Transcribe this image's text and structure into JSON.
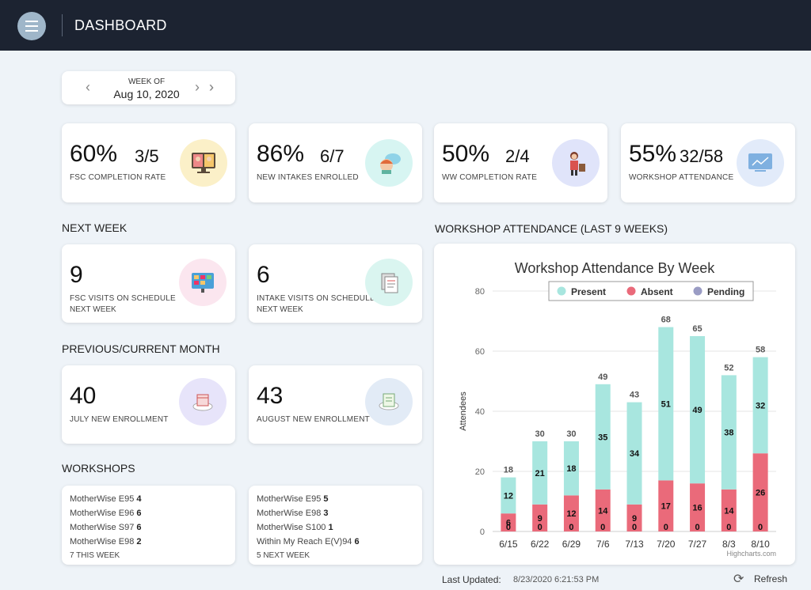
{
  "header": {
    "title": "DASHBOARD"
  },
  "week": {
    "label": "WEEK OF",
    "date": "Aug 10, 2020"
  },
  "stats": [
    {
      "big": "60%",
      "frac": "3/5",
      "label": "FSC COMPLETION RATE",
      "icon": "family-computer-icon",
      "color": "#fbf0c8"
    },
    {
      "big": "86%",
      "frac": "6/7",
      "label": "NEW INTAKES ENROLLED",
      "icon": "chat-person-icon",
      "color": "#d7f5f2"
    },
    {
      "big": "50%",
      "frac": "2/4",
      "label": "WW COMPLETION RATE",
      "icon": "teacher-icon",
      "color": "#e0e4fa"
    },
    {
      "big": "55%",
      "frac": "32/58",
      "label": "WORKSHOP ATTENDANCE",
      "icon": "presentation-screen-icon",
      "color": "#e2ebfa"
    }
  ],
  "sections": {
    "next_week": "NEXT WEEK",
    "month": "PREVIOUS/CURRENT MONTH",
    "workshops": "WORKSHOPS",
    "attendance": "WORKSHOP ATTENDANCE (LAST 9 WEEKS)"
  },
  "next_week": [
    {
      "big": "9",
      "label": "FSC VISITS ON SCHEDULE",
      "label2": "NEXT WEEK",
      "icon": "calendar-board-icon",
      "color": "#fbe6ef"
    },
    {
      "big": "6",
      "label": "INTAKE VISITS ON SCHEDULE",
      "label2": "NEXT WEEK",
      "icon": "documents-icon",
      "color": "#daf5f0"
    }
  ],
  "month": [
    {
      "big": "40",
      "label": "JULY NEW ENROLLMENT",
      "icon": "calendar-cloud-icon",
      "color": "#e7e4fa"
    },
    {
      "big": "43",
      "label": "AUGUST NEW ENROLLMENT",
      "icon": "document-cloud-icon",
      "color": "#e2ebf6"
    }
  ],
  "workshops": {
    "this_week": {
      "items": [
        {
          "name": "MotherWise E95",
          "count": "4"
        },
        {
          "name": "MotherWise E96",
          "count": "6"
        },
        {
          "name": "MotherWise S97",
          "count": "6"
        },
        {
          "name": "MotherWise E98",
          "count": "2"
        }
      ],
      "footer": "7 THIS WEEK"
    },
    "next_week": {
      "items": [
        {
          "name": "MotherWise E95",
          "count": "5"
        },
        {
          "name": "MotherWise E98",
          "count": "3"
        },
        {
          "name": "MotherWise S100",
          "count": "1"
        },
        {
          "name": "Within My Reach E(V)94",
          "count": "6"
        }
      ],
      "footer": "5 NEXT WEEK"
    }
  },
  "chart_data": {
    "type": "bar",
    "stacked": true,
    "title": "Workshop Attendance By Week",
    "ylabel": "Attendees",
    "xlabel": "",
    "ylim": [
      0,
      80
    ],
    "yticks": [
      0,
      20,
      40,
      60,
      80
    ],
    "categories": [
      "6/15",
      "6/22",
      "6/29",
      "7/6",
      "7/13",
      "7/20",
      "7/27",
      "8/3",
      "8/10"
    ],
    "series": [
      {
        "name": "Present",
        "color": "#a8e6df",
        "values": [
          12,
          21,
          18,
          35,
          34,
          51,
          49,
          38,
          32
        ]
      },
      {
        "name": "Absent",
        "color": "#ea6a7a",
        "values": [
          6,
          9,
          12,
          14,
          9,
          17,
          16,
          14,
          26
        ]
      },
      {
        "name": "Pending",
        "color": "#9a9cc4",
        "values": [
          0,
          0,
          0,
          0,
          0,
          0,
          0,
          0,
          0
        ]
      }
    ],
    "totals": [
      18,
      30,
      30,
      49,
      43,
      68,
      65,
      52,
      58
    ],
    "legend": "top",
    "credit": "Highcharts.com"
  },
  "footer": {
    "updated_label": "Last Updated:",
    "updated_value": "8/23/2020 6:21:53 PM",
    "refresh": "Refresh"
  }
}
